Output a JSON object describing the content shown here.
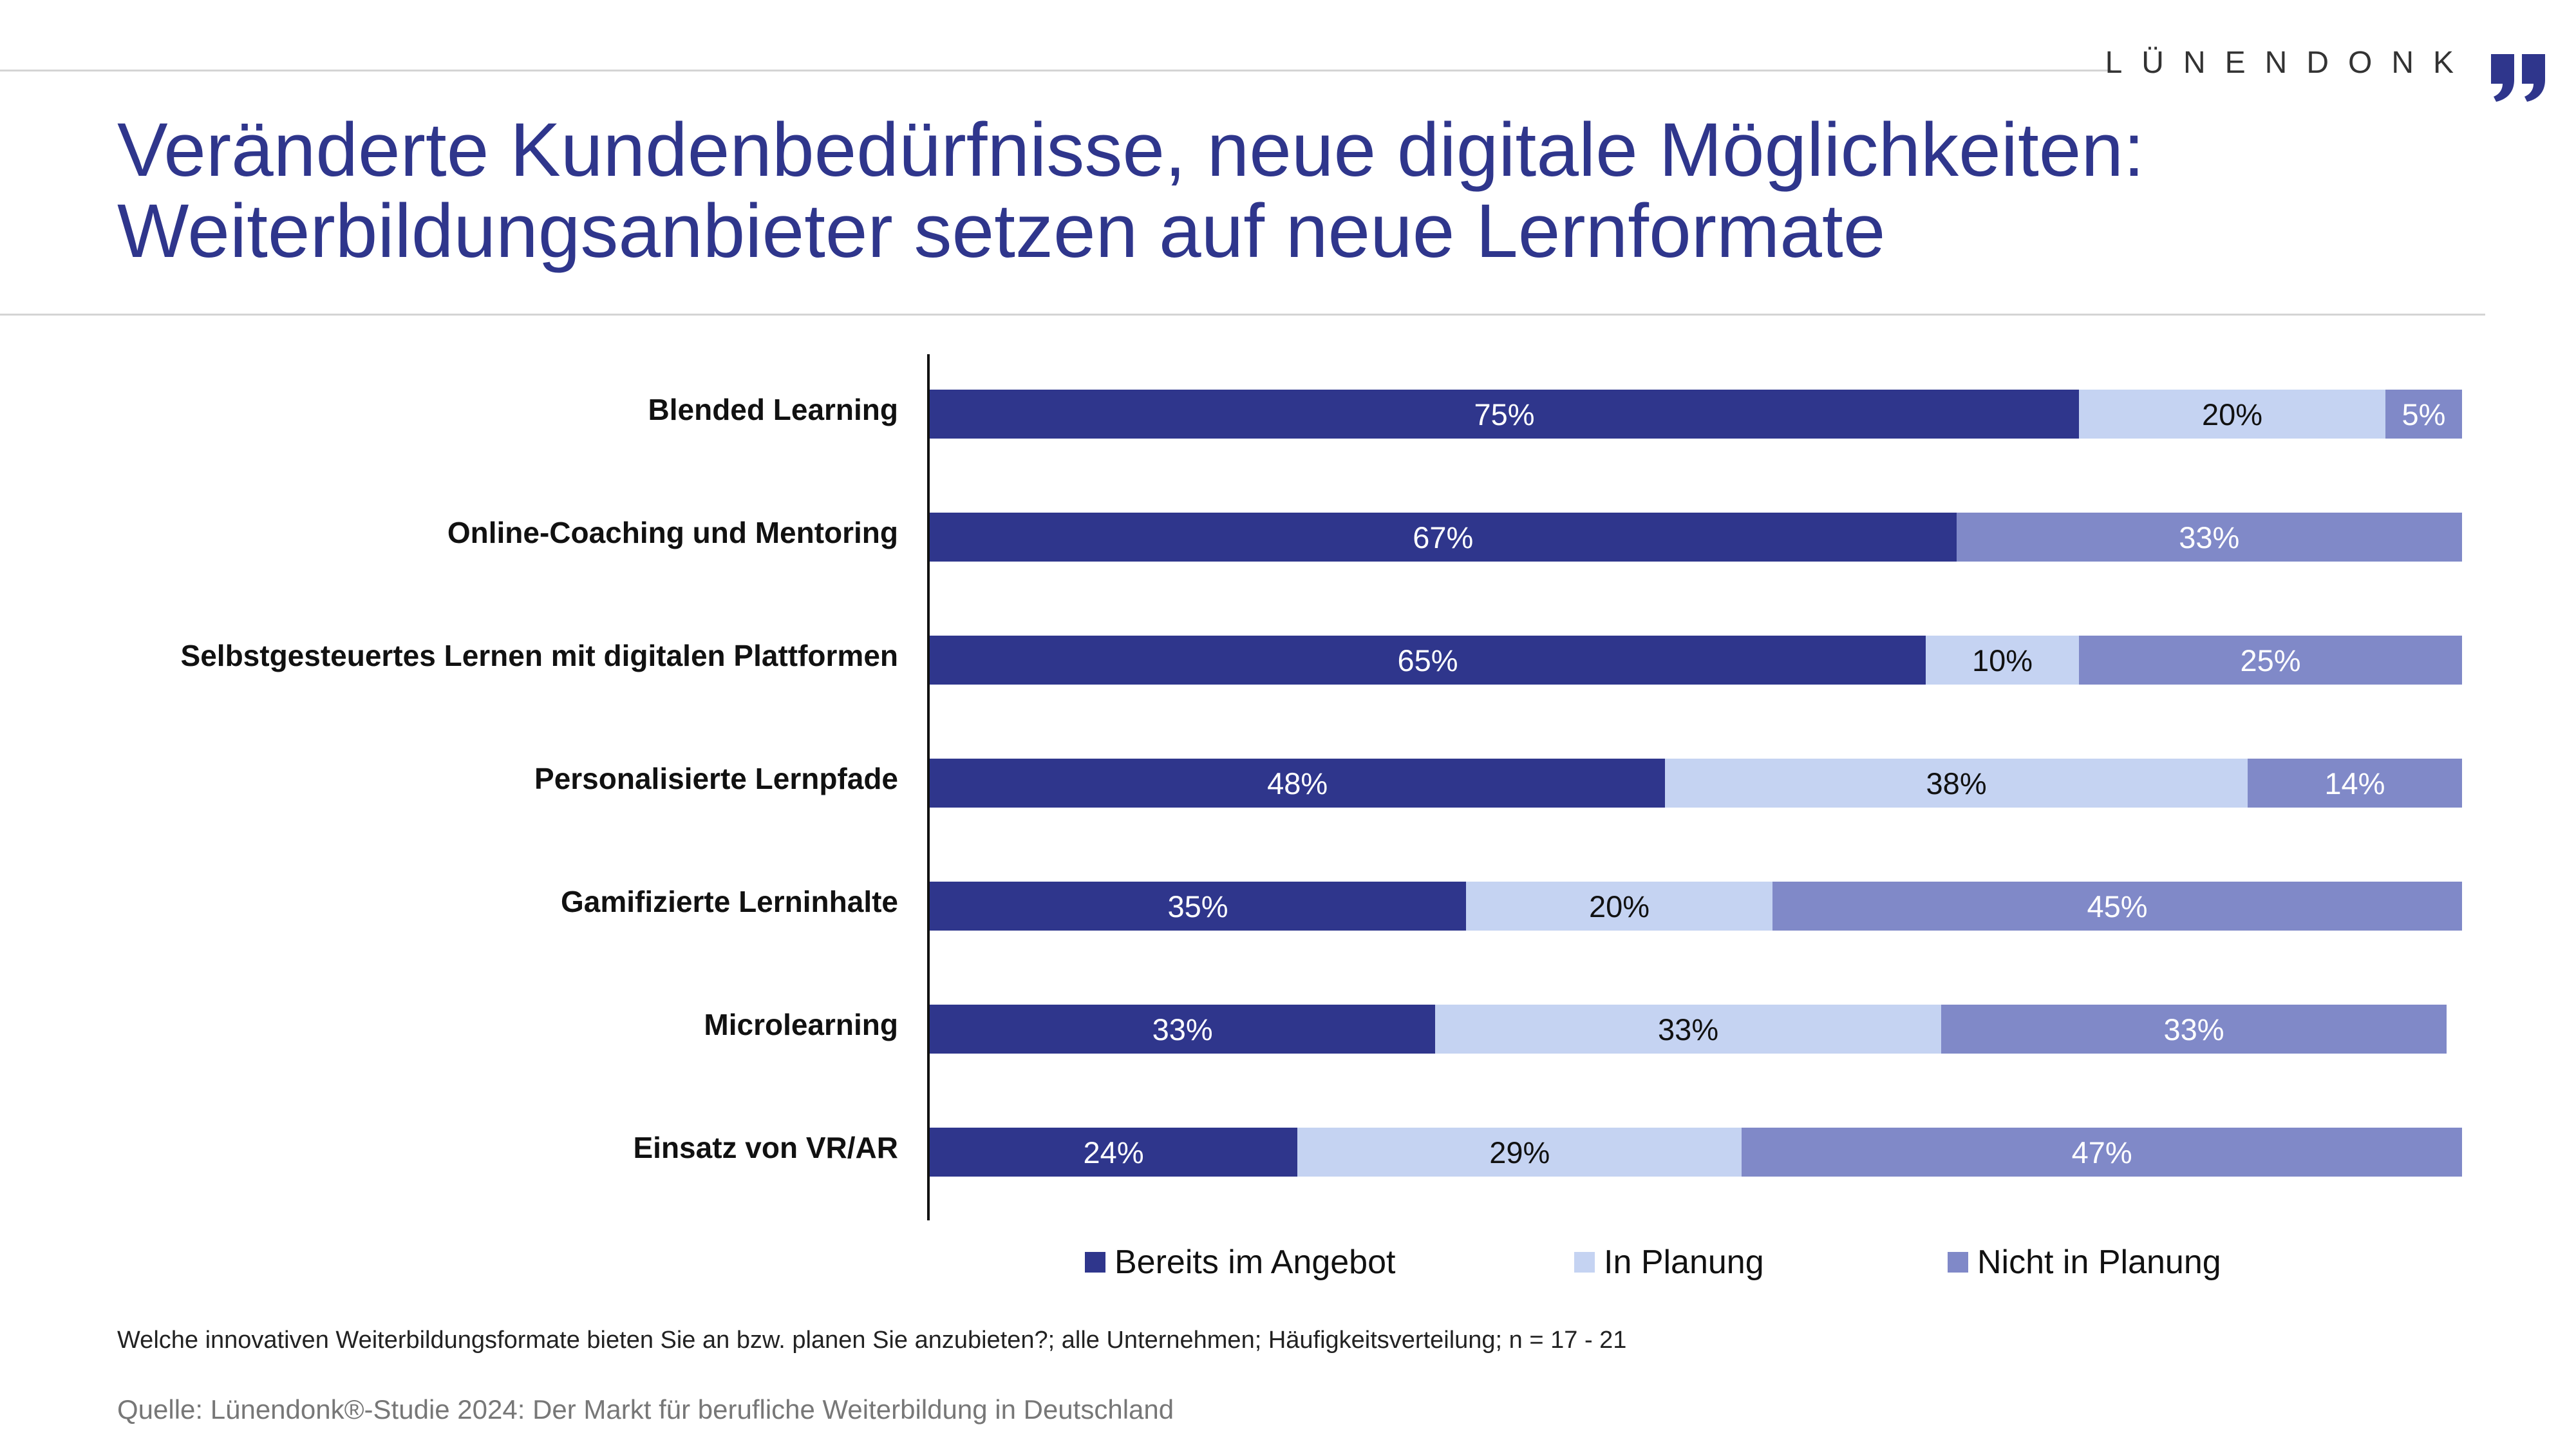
{
  "brand": {
    "name": "LÜNENDONK"
  },
  "title_lines": [
    "Veränderte Kundenbedürfnisse, neue digitale Möglichkeiten:",
    "Weiterbildungsanbieter setzen auf neue Lernformate"
  ],
  "colors": {
    "title": "#2f368c",
    "bereits": "#2f368c",
    "planung": "#c5d3f2",
    "nicht": "#8089c8"
  },
  "chart_data": {
    "type": "bar",
    "orientation": "horizontal",
    "stacked": true,
    "categories": [
      "Blended Learning",
      "Online-Coaching und Mentoring",
      "Selbstgesteuertes Lernen mit digitalen Plattformen",
      "Personalisierte Lernpfade",
      "Gamifizierte Lerninhalte",
      "Microlearning",
      "Einsatz von VR/AR"
    ],
    "series": [
      {
        "name": "Bereits im Angebot",
        "values": [
          75,
          67,
          65,
          48,
          35,
          33,
          24
        ],
        "labels": [
          "75%",
          "67%",
          "65%",
          "48%",
          "35%",
          "33%",
          "24%"
        ]
      },
      {
        "name": "In Planung",
        "values": [
          20,
          0,
          10,
          38,
          20,
          33,
          29
        ],
        "labels": [
          "20%",
          "",
          "10%",
          "38%",
          "20%",
          "33%",
          "29%"
        ]
      },
      {
        "name": "Nicht in Planung",
        "values": [
          5,
          33,
          25,
          14,
          45,
          33,
          47
        ],
        "labels": [
          "5%",
          "33%",
          "25%",
          "14%",
          "45%",
          "33%",
          "47%"
        ]
      }
    ],
    "xlim": [
      0,
      100
    ],
    "legend_position": "bottom"
  },
  "footnote": "Welche innovativen Weiterbildungsformate bieten Sie an bzw. planen Sie anzubieten?; alle Unternehmen; Häufigkeitsverteilung; n = 17 - 21",
  "source": "Quelle: Lünendonk®-Studie 2024: Der Markt für berufliche Weiterbildung in Deutschland"
}
